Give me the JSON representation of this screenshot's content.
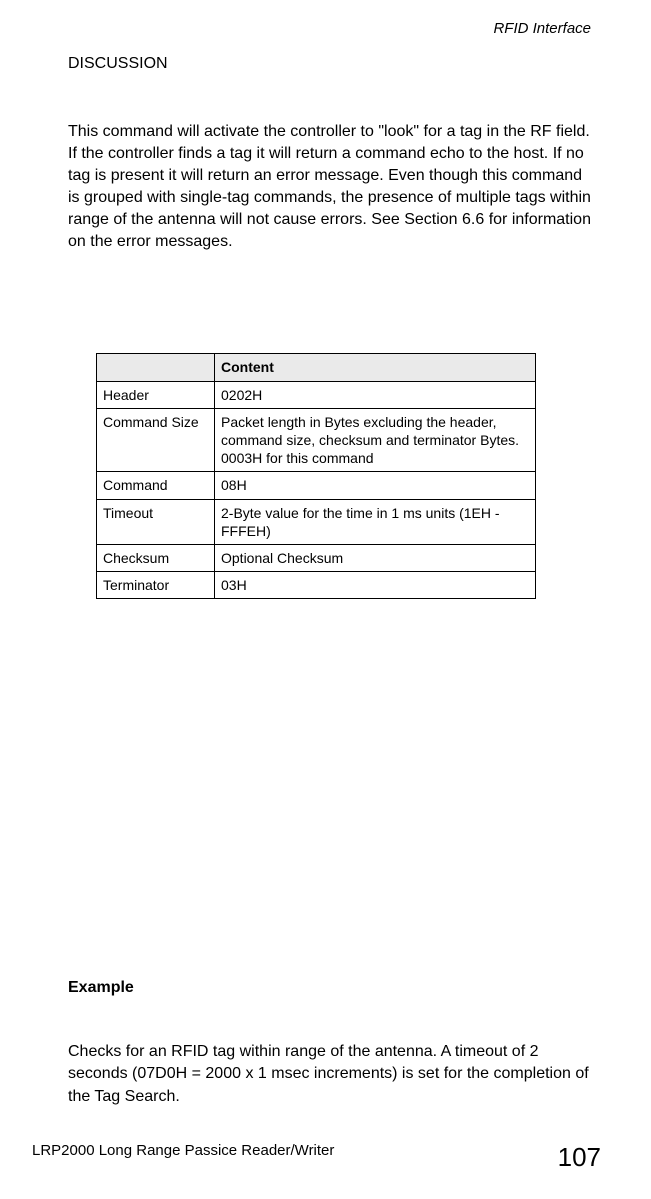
{
  "runningHead": "RFID Interface",
  "discussionLabel": "DISCUSSION",
  "bodyPara": "This command will activate the controller to \"look\" for a tag in the RF field.  If the controller finds a tag it will return a command echo to the host. If no tag is present it will return an error message. Even though this command is grouped with single-tag commands, the presence of multiple tags within range of the antenna will not cause errors. See Section 6.6 for information on the error messages.",
  "table": {
    "header2": "Content",
    "rows": [
      {
        "label": "Header",
        "content": "0202H"
      },
      {
        "label": "Command Size",
        "content": "Packet length in Bytes excluding the header, command size, checksum and terminator Bytes. 0003H for this command"
      },
      {
        "label": "Command",
        "content": "08H"
      },
      {
        "label": "Timeout",
        "content": "2-Byte value for the time in 1 ms units (1EH - FFFEH)"
      },
      {
        "label": "Checksum",
        "content": "Optional Checksum"
      },
      {
        "label": "Terminator",
        "content": "03H"
      }
    ]
  },
  "exampleHeading": "Example",
  "examplePara": "Checks for an RFID tag within range of the antenna. A timeout of 2 seconds (07D0H = 2000 x 1 msec increments) is set for the completion of the Tag Search.",
  "footerLeft": "LRP2000 Long Range Passice Reader/Writer",
  "footerRight": "107"
}
